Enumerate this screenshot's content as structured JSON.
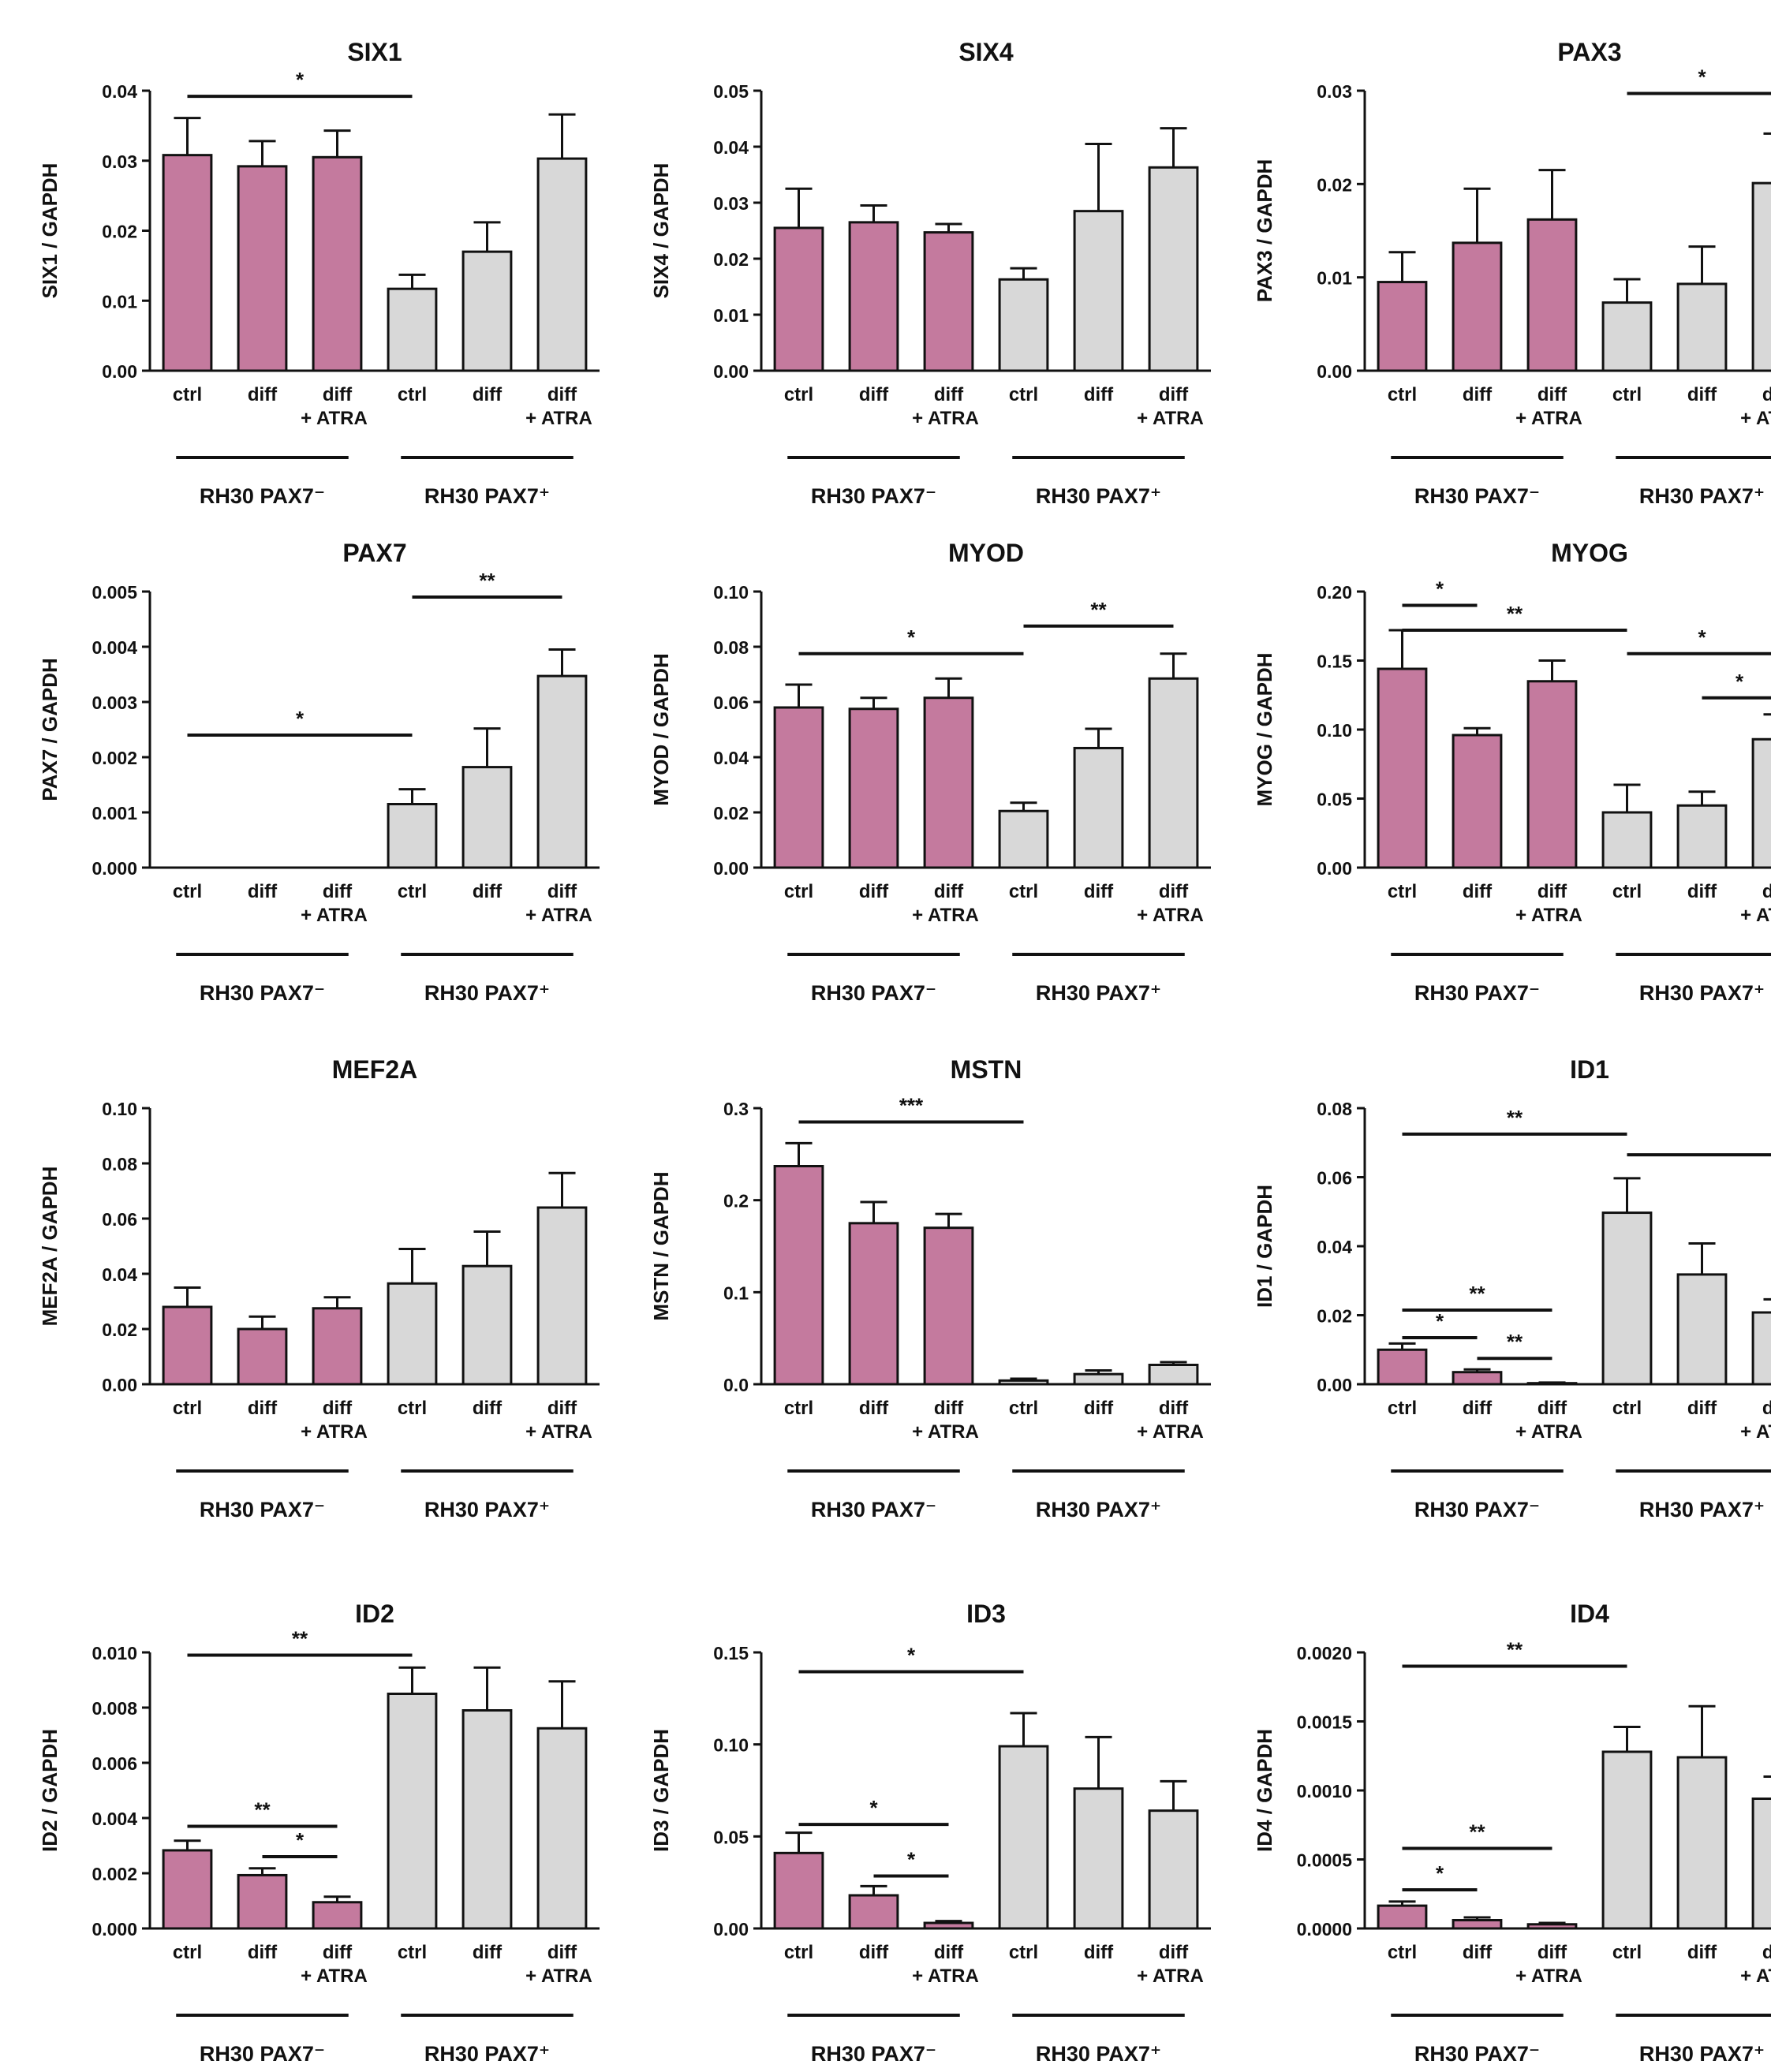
{
  "figure": {
    "background": "#ffffff",
    "pink": "#c47a9e",
    "grey": "#d8d8d8",
    "ink": "#111111"
  },
  "chart_data": [
    {
      "type": "bar",
      "title": "SIX1",
      "ylabel": "SIX1 / GAPDH",
      "yticks": [
        "0.00",
        "0.01",
        "0.02",
        "0.03",
        "0.04"
      ],
      "ylim": [
        0,
        0.04
      ],
      "categories": [
        "ctrl",
        "diff",
        "diff\n+ ATRA",
        "ctrl",
        "diff",
        "diff\n+ ATRA"
      ],
      "values": [
        0.0308,
        0.0292,
        0.0305,
        0.0117,
        0.017,
        0.0303
      ],
      "errors": [
        0.0053,
        0.0036,
        0.0038,
        0.002,
        0.0042,
        0.0063
      ],
      "groups": [
        "RH30 PAX7⁻",
        "RH30 PAX7⁺"
      ],
      "significance": [
        {
          "from": 0,
          "to": 3,
          "y": 0.0392,
          "label": "*"
        }
      ]
    },
    {
      "type": "bar",
      "title": "SIX4",
      "ylabel": "SIX4 / GAPDH",
      "yticks": [
        "0.00",
        "0.01",
        "0.02",
        "0.03",
        "0.04",
        "0.05"
      ],
      "ylim": [
        0,
        0.05
      ],
      "categories": [
        "ctrl",
        "diff",
        "diff\n+ ATRA",
        "ctrl",
        "diff",
        "diff\n+ ATRA"
      ],
      "values": [
        0.0255,
        0.0265,
        0.0247,
        0.0163,
        0.0285,
        0.0363
      ],
      "errors": [
        0.007,
        0.003,
        0.0015,
        0.002,
        0.012,
        0.007
      ],
      "groups": [
        "RH30 PAX7⁻",
        "RH30 PAX7⁺"
      ],
      "significance": []
    },
    {
      "type": "bar",
      "title": "PAX3",
      "ylabel": "PAX3 / GAPDH",
      "yticks": [
        "0.00",
        "0.01",
        "0.02",
        "0.03"
      ],
      "ylim": [
        0,
        0.03
      ],
      "categories": [
        "ctrl",
        "diff",
        "diff\n+ ATRA",
        "ctrl",
        "diff",
        "diff\n+ ATRA"
      ],
      "values": [
        0.0095,
        0.0137,
        0.0162,
        0.0073,
        0.0093,
        0.0201
      ],
      "errors": [
        0.0032,
        0.0058,
        0.0053,
        0.0025,
        0.004,
        0.0053
      ],
      "groups": [
        "RH30 PAX7⁻",
        "RH30 PAX7⁺"
      ],
      "significance": [
        {
          "from": 3,
          "to": 5,
          "y": 0.0297,
          "label": "*"
        }
      ]
    },
    {
      "type": "bar",
      "title": "PAX7",
      "ylabel": "PAX7 / GAPDH",
      "yticks": [
        "0.000",
        "0.001",
        "0.002",
        "0.003",
        "0.004",
        "0.005"
      ],
      "ylim": [
        0,
        0.005
      ],
      "categories": [
        "ctrl",
        "diff",
        "diff\n+ ATRA",
        "ctrl",
        "diff",
        "diff\n+ ATRA"
      ],
      "values": [
        0,
        0,
        0,
        0.00115,
        0.00182,
        0.00347
      ],
      "errors": [
        0,
        0,
        0,
        0.00027,
        0.0007,
        0.00048
      ],
      "groups": [
        "RH30 PAX7⁻",
        "RH30 PAX7⁺"
      ],
      "significance": [
        {
          "from": 0,
          "to": 3,
          "y": 0.0024,
          "label": "*"
        },
        {
          "from": 3,
          "to": 5,
          "y": 0.0049,
          "label": "**"
        }
      ]
    },
    {
      "type": "bar",
      "title": "MYOD",
      "ylabel": "MYOD / GAPDH",
      "yticks": [
        "0.00",
        "0.02",
        "0.04",
        "0.06",
        "0.08",
        "0.10"
      ],
      "ylim": [
        0,
        0.1
      ],
      "categories": [
        "ctrl",
        "diff",
        "diff\n+ ATRA",
        "ctrl",
        "diff",
        "diff\n+ ATRA"
      ],
      "values": [
        0.058,
        0.0575,
        0.0615,
        0.0205,
        0.0433,
        0.0685
      ],
      "errors": [
        0.0083,
        0.004,
        0.007,
        0.003,
        0.007,
        0.009
      ],
      "groups": [
        "RH30 PAX7⁻",
        "RH30 PAX7⁺"
      ],
      "significance": [
        {
          "from": 0,
          "to": 3,
          "y": 0.0775,
          "label": "*"
        },
        {
          "from": 3,
          "to": 5,
          "y": 0.0875,
          "label": "**"
        }
      ]
    },
    {
      "type": "bar",
      "title": "MYOG",
      "ylabel": "MYOG / GAPDH",
      "yticks": [
        "0.00",
        "0.05",
        "0.10",
        "0.15",
        "0.20"
      ],
      "ylim": [
        0,
        0.2
      ],
      "categories": [
        "ctrl",
        "diff",
        "diff\n+ ATRA",
        "ctrl",
        "diff",
        "diff\n+ ATRA"
      ],
      "values": [
        0.144,
        0.096,
        0.135,
        0.04,
        0.045,
        0.093
      ],
      "errors": [
        0.028,
        0.005,
        0.015,
        0.02,
        0.01,
        0.018
      ],
      "groups": [
        "RH30 PAX7⁻",
        "RH30 PAX7⁺"
      ],
      "significance": [
        {
          "from": 0,
          "to": 1,
          "y": 0.19,
          "label": "*"
        },
        {
          "from": 0,
          "to": 3,
          "y": 0.172,
          "label": "**"
        },
        {
          "from": 3,
          "to": 5,
          "y": 0.155,
          "label": "*"
        },
        {
          "from": 4,
          "to": 5,
          "y": 0.123,
          "label": "*"
        }
      ]
    },
    {
      "type": "bar",
      "title": "MEF2A",
      "ylabel": "MEF2A / GAPDH",
      "yticks": [
        "0.00",
        "0.02",
        "0.04",
        "0.06",
        "0.08",
        "0.10"
      ],
      "ylim": [
        0,
        0.1
      ],
      "categories": [
        "ctrl",
        "diff",
        "diff\n+ ATRA",
        "ctrl",
        "diff",
        "diff\n+ ATRA"
      ],
      "values": [
        0.028,
        0.02,
        0.0275,
        0.0365,
        0.0428,
        0.064
      ],
      "errors": [
        0.007,
        0.0045,
        0.004,
        0.0125,
        0.0125,
        0.0125
      ],
      "groups": [
        "RH30 PAX7⁻",
        "RH30 PAX7⁺"
      ],
      "significance": []
    },
    {
      "type": "bar",
      "title": "MSTN",
      "ylabel": "MSTN / GAPDH",
      "yticks": [
        "0.0",
        "0.1",
        "0.2",
        "0.3"
      ],
      "ylim": [
        0,
        0.3
      ],
      "categories": [
        "ctrl",
        "diff",
        "diff\n+ ATRA",
        "ctrl",
        "diff",
        "diff\n+ ATRA"
      ],
      "values": [
        0.237,
        0.175,
        0.17,
        0.004,
        0.011,
        0.021
      ],
      "errors": [
        0.025,
        0.023,
        0.015,
        0.002,
        0.004,
        0.003
      ],
      "groups": [
        "RH30 PAX7⁻",
        "RH30 PAX7⁺"
      ],
      "significance": [
        {
          "from": 0,
          "to": 3,
          "y": 0.285,
          "label": "***"
        }
      ]
    },
    {
      "type": "bar",
      "title": "ID1",
      "ylabel": "ID1 / GAPDH",
      "yticks": [
        "0.00",
        "0.02",
        "0.04",
        "0.06",
        "0.08"
      ],
      "ylim": [
        0,
        0.08
      ],
      "categories": [
        "ctrl",
        "diff",
        "diff\n+ ATRA",
        "ctrl",
        "diff",
        "diff\n+ ATRA"
      ],
      "values": [
        0.01,
        0.0035,
        0.0003,
        0.0497,
        0.0318,
        0.0208
      ],
      "errors": [
        0.0018,
        0.0008,
        0.0002,
        0.01,
        0.009,
        0.0038
      ],
      "groups": [
        "RH30 PAX7⁻",
        "RH30 PAX7⁺"
      ],
      "significance": [
        {
          "from": 0,
          "to": 3,
          "y": 0.0725,
          "label": "**"
        },
        {
          "from": 3,
          "to": 5,
          "y": 0.0665,
          "label": ""
        },
        {
          "from": 0,
          "to": 2,
          "y": 0.0215,
          "label": "**"
        },
        {
          "from": 0,
          "to": 1,
          "y": 0.0135,
          "label": "*"
        },
        {
          "from": 1,
          "to": 2,
          "y": 0.0075,
          "label": "**"
        }
      ]
    },
    {
      "type": "bar",
      "title": "ID2",
      "ylabel": "ID2 / GAPDH",
      "yticks": [
        "0.000",
        "0.002",
        "0.004",
        "0.006",
        "0.008",
        "0.010"
      ],
      "ylim": [
        0,
        0.01
      ],
      "categories": [
        "ctrl",
        "diff",
        "diff\n+ ATRA",
        "ctrl",
        "diff",
        "diff\n+ ATRA"
      ],
      "values": [
        0.00283,
        0.00193,
        0.00095,
        0.0085,
        0.0079,
        0.00725
      ],
      "errors": [
        0.00035,
        0.00025,
        0.0002,
        0.00095,
        0.00155,
        0.0017
      ],
      "groups": [
        "RH30 PAX7⁻",
        "RH30 PAX7⁺"
      ],
      "significance": [
        {
          "from": 0,
          "to": 3,
          "y": 0.0099,
          "label": "**"
        },
        {
          "from": 0,
          "to": 2,
          "y": 0.0037,
          "label": "**"
        },
        {
          "from": 1,
          "to": 2,
          "y": 0.0026,
          "label": "*"
        }
      ]
    },
    {
      "type": "bar",
      "title": "ID3",
      "ylabel": "ID3 / GAPDH",
      "yticks": [
        "0.00",
        "0.05",
        "0.10",
        "0.15"
      ],
      "ylim": [
        0,
        0.15
      ],
      "categories": [
        "ctrl",
        "diff",
        "diff\n+ ATRA",
        "ctrl",
        "diff",
        "diff\n+ ATRA"
      ],
      "values": [
        0.041,
        0.018,
        0.003,
        0.099,
        0.076,
        0.064
      ],
      "errors": [
        0.011,
        0.005,
        0.001,
        0.018,
        0.028,
        0.016
      ],
      "groups": [
        "RH30 PAX7⁻",
        "RH30 PAX7⁺"
      ],
      "significance": [
        {
          "from": 0,
          "to": 3,
          "y": 0.1395,
          "label": "*"
        },
        {
          "from": 0,
          "to": 2,
          "y": 0.0565,
          "label": "*"
        },
        {
          "from": 1,
          "to": 2,
          "y": 0.0285,
          "label": "*"
        }
      ]
    },
    {
      "type": "bar",
      "title": "ID4",
      "ylabel": "ID4 / GAPDH",
      "yticks": [
        "0.0000",
        "0.0005",
        "0.0010",
        "0.0015",
        "0.0020"
      ],
      "ylim": [
        0,
        0.002
      ],
      "categories": [
        "ctrl",
        "diff",
        "diff\n+ ATRA",
        "ctrl",
        "diff",
        "diff\n+ ATRA"
      ],
      "values": [
        0.000165,
        6e-05,
        3e-05,
        0.00128,
        0.00124,
        0.00094
      ],
      "errors": [
        3e-05,
        2e-05,
        1e-05,
        0.00018,
        0.00037,
        0.00016
      ],
      "groups": [
        "RH30 PAX7⁻",
        "RH30 PAX7⁺"
      ],
      "significance": [
        {
          "from": 0,
          "to": 3,
          "y": 0.0019,
          "label": "**"
        },
        {
          "from": 0,
          "to": 2,
          "y": 0.00058,
          "label": "**"
        },
        {
          "from": 0,
          "to": 1,
          "y": 0.00028,
          "label": "*"
        }
      ]
    }
  ]
}
